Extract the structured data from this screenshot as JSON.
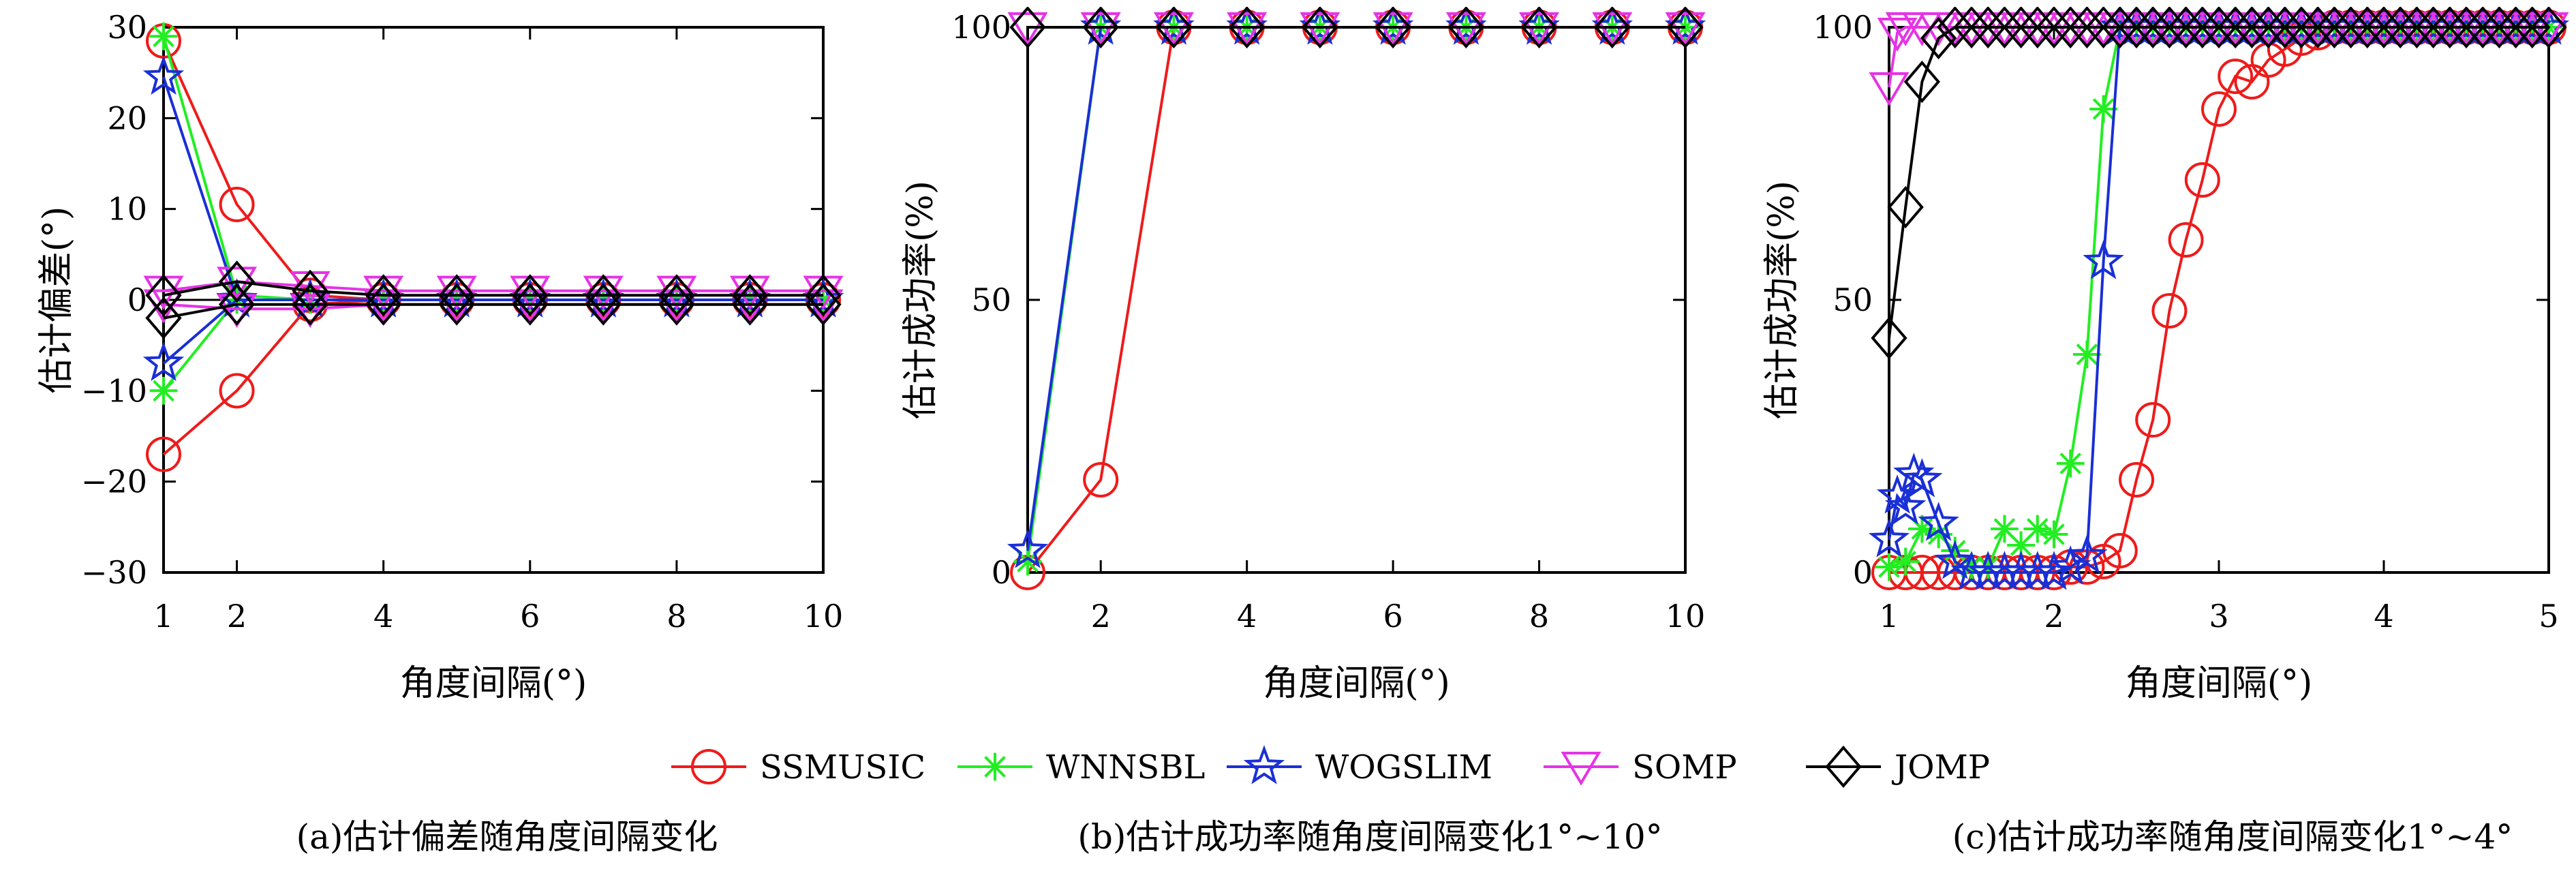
{
  "colors": {
    "SSMUSIC": "#ee1b1b",
    "WNNSBL": "#22ee22",
    "WOGSLIM": "#1a2fd6",
    "SOMP": "#e633e6",
    "JOMP": "#000000"
  },
  "legend": {
    "position": "bottom-center",
    "entries": [
      {
        "name": "SSMUSIC",
        "marker": "circle"
      },
      {
        "name": "WNNSBL",
        "marker": "asterisk"
      },
      {
        "name": "WOGSLIM",
        "marker": "star"
      },
      {
        "name": "SOMP",
        "marker": "triangle-down"
      },
      {
        "name": "JOMP",
        "marker": "diamond"
      }
    ]
  },
  "chart_data": [
    {
      "type": "line",
      "caption": "(a)估计偏差随角度间隔变化",
      "xlabel": "角度间隔(°)",
      "ylabel": "估计偏差(°)",
      "xlim": [
        1,
        10
      ],
      "ylim": [
        -30,
        30
      ],
      "xticks": [
        1,
        2,
        4,
        6,
        8,
        10
      ],
      "yticks": [
        -30,
        -20,
        -10,
        0,
        10,
        20,
        30
      ],
      "reference_lines": [
        0
      ],
      "series": [
        {
          "name": "SSMUSIC",
          "x": [
            1,
            2,
            3,
            4,
            5,
            6,
            7,
            8,
            9,
            10
          ],
          "y": [
            28.5,
            10.5,
            0.5,
            0,
            0,
            0,
            0,
            0,
            0,
            0
          ]
        },
        {
          "name": "SSMUSIC",
          "x": [
            1,
            2,
            3,
            4,
            5,
            6,
            7,
            8,
            9,
            10
          ],
          "y": [
            -17,
            -10,
            -0.5,
            0,
            0,
            0,
            0,
            0,
            0,
            0
          ]
        },
        {
          "name": "WNNSBL",
          "x": [
            1,
            2,
            3,
            4,
            5,
            6,
            7,
            8,
            9,
            10
          ],
          "y": [
            29,
            0.5,
            0,
            0,
            0,
            0,
            0,
            0,
            0,
            0
          ]
        },
        {
          "name": "WNNSBL",
          "x": [
            1,
            2,
            3,
            4,
            5,
            6,
            7,
            8,
            9,
            10
          ],
          "y": [
            -10,
            0,
            0,
            0,
            0,
            0,
            0,
            0,
            0,
            0
          ]
        },
        {
          "name": "WOGSLIM",
          "x": [
            1,
            2,
            3,
            4,
            5,
            6,
            7,
            8,
            9,
            10
          ],
          "y": [
            24.5,
            0,
            0,
            0,
            0,
            0,
            0,
            0,
            0,
            0
          ]
        },
        {
          "name": "WOGSLIM",
          "x": [
            1,
            2,
            3,
            4,
            5,
            6,
            7,
            8,
            9,
            10
          ],
          "y": [
            -7,
            0,
            0,
            0,
            0,
            0,
            0,
            0,
            0,
            0
          ]
        },
        {
          "name": "SOMP",
          "x": [
            1,
            2,
            3,
            4,
            5,
            6,
            7,
            8,
            9,
            10
          ],
          "y": [
            1,
            2,
            1.5,
            1,
            1,
            1,
            1,
            1,
            1,
            1
          ]
        },
        {
          "name": "SOMP",
          "x": [
            1,
            2,
            3,
            4,
            5,
            6,
            7,
            8,
            9,
            10
          ],
          "y": [
            -0.5,
            -1,
            -1,
            -0.5,
            -0.5,
            -0.5,
            -0.5,
            -0.5,
            -0.5,
            -0.5
          ]
        },
        {
          "name": "JOMP",
          "x": [
            1,
            2,
            3,
            4,
            5,
            6,
            7,
            8,
            9,
            10
          ],
          "y": [
            0.5,
            2,
            1,
            0.5,
            0.5,
            0.5,
            0.5,
            0.5,
            0.5,
            0.5
          ]
        },
        {
          "name": "JOMP",
          "x": [
            1,
            2,
            3,
            4,
            5,
            6,
            7,
            8,
            9,
            10
          ],
          "y": [
            -2,
            -0.5,
            -0.5,
            -0.5,
            -0.5,
            -0.5,
            -0.5,
            -0.5,
            -0.5,
            -0.5
          ]
        }
      ]
    },
    {
      "type": "line",
      "caption": "(b)估计成功率随角度间隔变化1°~10°",
      "xlabel": "角度间隔(°)",
      "ylabel": "估计成功率(%)",
      "xlim": [
        1,
        10
      ],
      "ylim": [
        0,
        100
      ],
      "xticks": [
        2,
        4,
        6,
        8,
        10
      ],
      "yticks": [
        0,
        50,
        100
      ],
      "series": [
        {
          "name": "SSMUSIC",
          "x": [
            1,
            2,
            3,
            4,
            5,
            6,
            7,
            8,
            9,
            10
          ],
          "y": [
            0,
            17,
            100,
            100,
            100,
            100,
            100,
            100,
            100,
            100
          ]
        },
        {
          "name": "WNNSBL",
          "x": [
            1,
            2,
            3,
            4,
            5,
            6,
            7,
            8,
            9,
            10
          ],
          "y": [
            2,
            100,
            100,
            100,
            100,
            100,
            100,
            100,
            100,
            100
          ]
        },
        {
          "name": "WOGSLIM",
          "x": [
            1,
            2,
            3,
            4,
            5,
            6,
            7,
            8,
            9,
            10
          ],
          "y": [
            4,
            100,
            100,
            100,
            100,
            100,
            100,
            100,
            100,
            100
          ]
        },
        {
          "name": "SOMP",
          "x": [
            1,
            2,
            3,
            4,
            5,
            6,
            7,
            8,
            9,
            10
          ],
          "y": [
            100,
            100,
            100,
            100,
            100,
            100,
            100,
            100,
            100,
            100
          ]
        },
        {
          "name": "JOMP",
          "x": [
            1,
            2,
            3,
            4,
            5,
            6,
            7,
            8,
            9,
            10
          ],
          "y": [
            100,
            100,
            100,
            100,
            100,
            100,
            100,
            100,
            100,
            100
          ]
        }
      ]
    },
    {
      "type": "line",
      "caption": "(c)估计成功率随角度间隔变化1°~4°",
      "xlabel": "角度间隔(°)",
      "ylabel": "估计成功率(%)",
      "xlim": [
        1,
        5
      ],
      "ylim": [
        0,
        100
      ],
      "xticks": [
        1,
        2,
        3,
        4,
        5
      ],
      "yticks": [
        0,
        50,
        100
      ],
      "series": [
        {
          "name": "SSMUSIC",
          "x": [
            1,
            1.1,
            1.2,
            1.3,
            1.4,
            1.5,
            1.6,
            1.7,
            1.8,
            1.9,
            2.0,
            2.1,
            2.2,
            2.3,
            2.4,
            2.5,
            2.6,
            2.7,
            2.8,
            2.9,
            3.0,
            3.1,
            3.2,
            3.3,
            3.4,
            3.5,
            3.6,
            3.7,
            3.8,
            3.9,
            4.0,
            4.1,
            4.2,
            4.3,
            4.4,
            4.5,
            4.6,
            4.7,
            4.8,
            4.9,
            5.0
          ],
          "y": [
            0,
            0,
            0,
            0,
            0,
            0,
            0,
            0,
            0,
            0,
            0,
            1,
            1,
            2,
            4,
            17,
            28,
            48,
            61,
            72,
            85,
            91,
            90,
            94,
            96,
            98,
            99,
            100,
            100,
            100,
            100,
            100,
            100,
            100,
            100,
            100,
            100,
            100,
            100,
            100,
            100
          ]
        },
        {
          "name": "WNNSBL",
          "x": [
            1,
            1.1,
            1.2,
            1.3,
            1.4,
            1.5,
            1.6,
            1.7,
            1.8,
            1.9,
            2.0,
            2.1,
            2.2,
            2.3,
            2.4,
            2.5,
            2.6,
            2.7,
            2.8,
            2.9,
            3.0,
            3.1,
            3.2,
            3.3,
            3.4,
            3.5,
            3.6,
            3.7,
            3.8,
            3.9,
            4.0,
            4.1,
            4.2,
            4.3,
            4.4,
            4.5,
            4.6,
            4.7,
            4.8,
            4.9,
            5.0
          ],
          "y": [
            1,
            2,
            8,
            7,
            4,
            1,
            1,
            8,
            5,
            8,
            7,
            20,
            40,
            85,
            100,
            100,
            100,
            100,
            100,
            100,
            100,
            100,
            100,
            100,
            100,
            100,
            100,
            100,
            100,
            100,
            100,
            100,
            100,
            100,
            100,
            100,
            100,
            100,
            100,
            100,
            100
          ]
        },
        {
          "name": "WOGSLIM",
          "x": [
            1,
            1.05,
            1.1,
            1.15,
            1.2,
            1.3,
            1.4,
            1.5,
            1.6,
            1.7,
            1.8,
            1.9,
            2.0,
            2.1,
            2.2,
            2.3,
            2.4,
            2.5,
            2.6,
            2.7,
            2.8,
            2.9,
            3.0,
            3.1,
            3.2,
            3.3,
            3.4,
            3.5,
            3.6,
            3.7,
            3.8,
            3.9,
            4.0,
            4.1,
            4.2,
            4.3,
            4.4,
            4.5,
            4.6,
            4.7,
            4.8,
            4.9,
            5.0
          ],
          "y": [
            6,
            14,
            12,
            18,
            17,
            9,
            2,
            0,
            0,
            0,
            0,
            0,
            0,
            1,
            3,
            57,
            100,
            100,
            100,
            100,
            100,
            100,
            100,
            100,
            100,
            100,
            100,
            100,
            100,
            100,
            100,
            100,
            100,
            100,
            100,
            100,
            100,
            100,
            100,
            100,
            100,
            100,
            100
          ]
        },
        {
          "name": "SOMP",
          "x": [
            1,
            1.05,
            1.1,
            1.2,
            1.3,
            1.4,
            1.5,
            1.6,
            1.7,
            1.8,
            1.9,
            2.0,
            2.1,
            2.2,
            2.3,
            2.4,
            2.5,
            2.6,
            2.7,
            2.8,
            2.9,
            3.0,
            3.1,
            3.2,
            3.3,
            3.4,
            3.5,
            3.6,
            3.7,
            3.8,
            3.9,
            4.0,
            4.1,
            4.2,
            4.3,
            4.4,
            4.5,
            4.6,
            4.7,
            4.8,
            4.9,
            5.0
          ],
          "y": [
            89,
            99,
            100,
            100,
            100,
            100,
            100,
            100,
            100,
            100,
            100,
            100,
            100,
            100,
            100,
            100,
            100,
            100,
            100,
            100,
            100,
            100,
            100,
            100,
            100,
            100,
            100,
            100,
            100,
            100,
            100,
            100,
            100,
            100,
            100,
            100,
            100,
            100,
            100,
            100,
            100,
            100
          ]
        },
        {
          "name": "JOMP",
          "x": [
            1,
            1.1,
            1.2,
            1.3,
            1.4,
            1.5,
            1.6,
            1.7,
            1.8,
            1.9,
            2.0,
            2.1,
            2.2,
            2.3,
            2.4,
            2.5,
            2.6,
            2.7,
            2.8,
            2.9,
            3.0,
            3.1,
            3.2,
            3.3,
            3.4,
            3.5,
            3.6,
            3.7,
            3.8,
            3.9,
            4.0,
            4.1,
            4.2,
            4.3,
            4.4,
            4.5,
            4.6,
            4.7,
            4.8,
            4.9,
            5.0
          ],
          "y": [
            43,
            67,
            90,
            98,
            100,
            100,
            100,
            100,
            100,
            100,
            100,
            100,
            100,
            100,
            100,
            100,
            100,
            100,
            100,
            100,
            100,
            100,
            100,
            100,
            100,
            100,
            100,
            100,
            100,
            100,
            100,
            100,
            100,
            100,
            100,
            100,
            100,
            100,
            100,
            100,
            100
          ]
        }
      ]
    }
  ]
}
